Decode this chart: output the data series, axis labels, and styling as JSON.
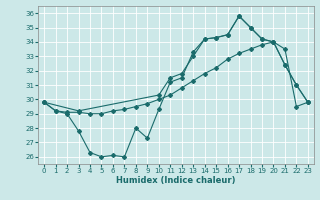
{
  "xlabel": "Humidex (Indice chaleur)",
  "bg_color": "#cce8e8",
  "line_color": "#1a6b6b",
  "grid_color": "#ffffff",
  "ylim": [
    25.5,
    36.5
  ],
  "xlim": [
    -0.5,
    23.5
  ],
  "yticks": [
    26,
    27,
    28,
    29,
    30,
    31,
    32,
    33,
    34,
    35,
    36
  ],
  "xticks": [
    0,
    1,
    2,
    3,
    4,
    5,
    6,
    7,
    8,
    9,
    10,
    11,
    12,
    13,
    14,
    15,
    16,
    17,
    18,
    19,
    20,
    21,
    22,
    23
  ],
  "series": [
    {
      "x": [
        0,
        1,
        2,
        3,
        4,
        5,
        6,
        7,
        8,
        9,
        10,
        11,
        12,
        13,
        14,
        15,
        16,
        17,
        18,
        19,
        20,
        21,
        22,
        23
      ],
      "y": [
        29.8,
        29.2,
        29.0,
        27.8,
        26.3,
        26.0,
        26.1,
        26.0,
        28.0,
        27.3,
        29.3,
        31.2,
        31.5,
        33.3,
        34.2,
        34.3,
        34.5,
        35.8,
        35.0,
        34.2,
        34.0,
        32.4,
        31.0,
        29.8
      ]
    },
    {
      "x": [
        0,
        1,
        2,
        3,
        4,
        5,
        6,
        7,
        8,
        9,
        10,
        11,
        12,
        13,
        14,
        15,
        16,
        17,
        18,
        19,
        20,
        21,
        22,
        23
      ],
      "y": [
        29.8,
        29.2,
        29.1,
        29.1,
        29.0,
        29.0,
        29.2,
        29.3,
        29.5,
        29.7,
        30.0,
        30.3,
        30.8,
        31.3,
        31.8,
        32.2,
        32.8,
        33.2,
        33.5,
        33.8,
        34.0,
        33.5,
        29.5,
        29.8
      ]
    },
    {
      "x": [
        0,
        3,
        10,
        11,
        12,
        13,
        14,
        15,
        16,
        17,
        18,
        19,
        20,
        21,
        22,
        23
      ],
      "y": [
        29.8,
        29.2,
        30.3,
        31.5,
        31.8,
        33.0,
        34.2,
        34.3,
        34.5,
        35.8,
        35.0,
        34.2,
        34.0,
        32.4,
        31.0,
        29.8
      ]
    }
  ]
}
